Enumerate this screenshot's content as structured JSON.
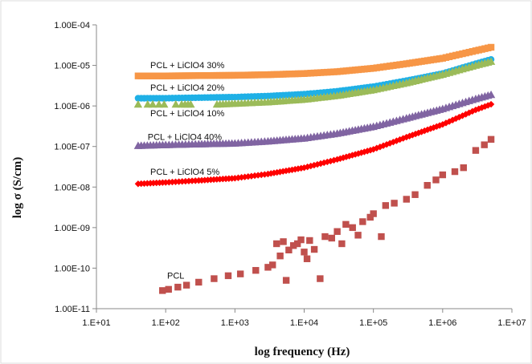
{
  "chart_data": {
    "type": "scatter",
    "title": "",
    "xlabel": "log frequency (Hz)",
    "ylabel": "log σ (S/cm)",
    "x_scale": "log",
    "y_scale": "log",
    "xlim": [
      10,
      10000000
    ],
    "ylim": [
      1e-11,
      0.0001
    ],
    "x_tick_values": [
      10,
      100,
      1000,
      10000,
      100000,
      1000000,
      10000000
    ],
    "x_tick_labels": [
      "1.E+01",
      "1.E+02",
      "1.E+03",
      "1.E+04",
      "1.E+05",
      "1.E+06",
      "1.E+07"
    ],
    "y_tick_values": [
      1e-11,
      1e-10,
      1e-09,
      1e-08,
      1e-07,
      1e-06,
      1e-05,
      0.0001
    ],
    "y_tick_labels": [
      "1.00E-11",
      "1.00E-10",
      "1.00E-09",
      "1.00E-08",
      "1.00E-07",
      "1.00E-06",
      "1.00E-05",
      "1.00E-04"
    ],
    "grid": false,
    "legend": "none",
    "series": [
      {
        "name": "PCL + LiClO4 30%",
        "marker": "square",
        "color": "#f79646",
        "points": [
          [
            40,
            5.5e-06
          ],
          [
            100,
            5.5e-06
          ],
          [
            300,
            5.6e-06
          ],
          [
            1000,
            5.7e-06
          ],
          [
            3000,
            5.9e-06
          ],
          [
            10000,
            6.3e-06
          ],
          [
            30000,
            7e-06
          ],
          [
            100000,
            8.5e-06
          ],
          [
            300000,
            1.1e-05
          ],
          [
            1000000,
            1.5e-05
          ],
          [
            3000000,
            2.3e-05
          ],
          [
            5000000,
            2.8e-05
          ]
        ]
      },
      {
        "name": "PCL + LiClO4 20%",
        "marker": "circle",
        "color": "#1fb0e6",
        "points": [
          [
            40,
            1.55e-06
          ],
          [
            100,
            1.55e-06
          ],
          [
            300,
            1.6e-06
          ],
          [
            1000,
            1.65e-06
          ],
          [
            3000,
            1.75e-06
          ],
          [
            10000,
            1.95e-06
          ],
          [
            30000,
            2.3e-06
          ],
          [
            100000,
            3e-06
          ],
          [
            300000,
            4.2e-06
          ],
          [
            1000000,
            6.3e-06
          ],
          [
            3000000,
            1.1e-05
          ],
          [
            5000000,
            1.4e-05
          ]
        ]
      },
      {
        "name": "PCL + LiClO4 10%",
        "marker": "triangle",
        "color": "#9bbb59",
        "points": [
          [
            40,
            1.1e-06
          ],
          [
            55,
            1.1e-06
          ],
          [
            65,
            1.1e-06
          ],
          [
            80,
            1.1e-06
          ],
          [
            95,
            1.1e-06
          ],
          [
            140,
            1.1e-06
          ],
          [
            170,
            1.1e-06
          ],
          [
            190,
            1.1e-06
          ],
          [
            210,
            1.1e-06
          ],
          [
            230,
            1.1e-06
          ],
          [
            550,
            1.1e-06
          ],
          [
            1000,
            1.15e-06
          ],
          [
            3000,
            1.25e-06
          ],
          [
            10000,
            1.45e-06
          ],
          [
            30000,
            1.8e-06
          ],
          [
            100000,
            2.5e-06
          ],
          [
            300000,
            3.7e-06
          ],
          [
            1000000,
            6e-06
          ],
          [
            3000000,
            1e-05
          ],
          [
            5000000,
            1.25e-05
          ]
        ]
      },
      {
        "name": "PCL + LiClO4 40%",
        "marker": "triangle",
        "color": "#8064a2",
        "points": [
          [
            40,
            1.05e-07
          ],
          [
            100,
            1.1e-07
          ],
          [
            300,
            1.15e-07
          ],
          [
            1000,
            1.2e-07
          ],
          [
            3000,
            1.35e-07
          ],
          [
            10000,
            1.6e-07
          ],
          [
            30000,
            2.1e-07
          ],
          [
            100000,
            3.1e-07
          ],
          [
            300000,
            5e-07
          ],
          [
            1000000,
            8.5e-07
          ],
          [
            3000000,
            1.5e-06
          ],
          [
            5000000,
            1.9e-06
          ]
        ]
      },
      {
        "name": "PCL + LiClO4 5%",
        "marker": "diamond",
        "color": "#ff0000",
        "points": [
          [
            40,
            1.2e-08
          ],
          [
            100,
            1.3e-08
          ],
          [
            300,
            1.45e-08
          ],
          [
            1000,
            1.65e-08
          ],
          [
            3000,
            2.1e-08
          ],
          [
            10000,
            3e-08
          ],
          [
            30000,
            4.8e-08
          ],
          [
            100000,
            8.5e-08
          ],
          [
            300000,
            1.7e-07
          ],
          [
            1000000,
            3.5e-07
          ],
          [
            3000000,
            8e-07
          ],
          [
            5000000,
            1.1e-06
          ]
        ]
      },
      {
        "name": "PCL",
        "marker": "square",
        "color": "#c0504d",
        "points": [
          [
            90,
            2.8e-11
          ],
          [
            110,
            3e-11
          ],
          [
            150,
            3.4e-11
          ],
          [
            200,
            3.8e-11
          ],
          [
            300,
            4.5e-11
          ],
          [
            500,
            5.5e-11
          ],
          [
            800,
            6.5e-11
          ],
          [
            1200,
            7.2e-11
          ],
          [
            2000,
            8.8e-11
          ],
          [
            3000,
            1.05e-10
          ],
          [
            3500,
            1.2e-10
          ],
          [
            4000,
            4e-10
          ],
          [
            4500,
            2e-10
          ],
          [
            5000,
            4.5e-10
          ],
          [
            5500,
            5e-11
          ],
          [
            6000,
            2.8e-10
          ],
          [
            7000,
            3.6e-10
          ],
          [
            8000,
            4e-10
          ],
          [
            9000,
            5e-10
          ],
          [
            10000,
            2.5e-10
          ],
          [
            11000,
            1.7e-10
          ],
          [
            12000,
            4.8e-10
          ],
          [
            14000,
            2.9e-10
          ],
          [
            17000,
            5.5e-11
          ],
          [
            20000,
            6e-10
          ],
          [
            25000,
            5.5e-10
          ],
          [
            30000,
            8e-10
          ],
          [
            35000,
            4e-10
          ],
          [
            40000,
            1.2e-09
          ],
          [
            50000,
            1e-09
          ],
          [
            60000,
            6.5e-10
          ],
          [
            70000,
            1.4e-09
          ],
          [
            90000,
            1.8e-09
          ],
          [
            100000,
            2.2e-09
          ],
          [
            130000,
            6e-10
          ],
          [
            150000,
            3.5e-09
          ],
          [
            200000,
            4e-09
          ],
          [
            300000,
            5e-09
          ],
          [
            400000,
            6.5e-09
          ],
          [
            600000,
            1.1e-08
          ],
          [
            800000,
            1.5e-08
          ],
          [
            1000000,
            2e-08
          ],
          [
            1500000,
            2.4e-08
          ],
          [
            2000000,
            3e-08
          ],
          [
            3000000,
            8e-08
          ],
          [
            4000000,
            1.1e-07
          ],
          [
            5000000,
            1.5e-07
          ]
        ]
      }
    ],
    "series_labels": [
      {
        "text": "PCL + LiClO4 30%",
        "x": 60,
        "y": 8.5e-06
      },
      {
        "text": "PCL + LiClO4 20%",
        "x": 60,
        "y": 2.4e-06
      },
      {
        "text": "PCL + LiClO4 10%",
        "x": 60,
        "y": 5.6e-07
      },
      {
        "text": "PCL + LiClO4 40%",
        "x": 55,
        "y": 1.45e-07
      },
      {
        "text": "PCL + LiClO4 5%",
        "x": 60,
        "y": 2e-08
      },
      {
        "text": "PCL",
        "x": 105,
        "y": 5.5e-11
      }
    ]
  }
}
